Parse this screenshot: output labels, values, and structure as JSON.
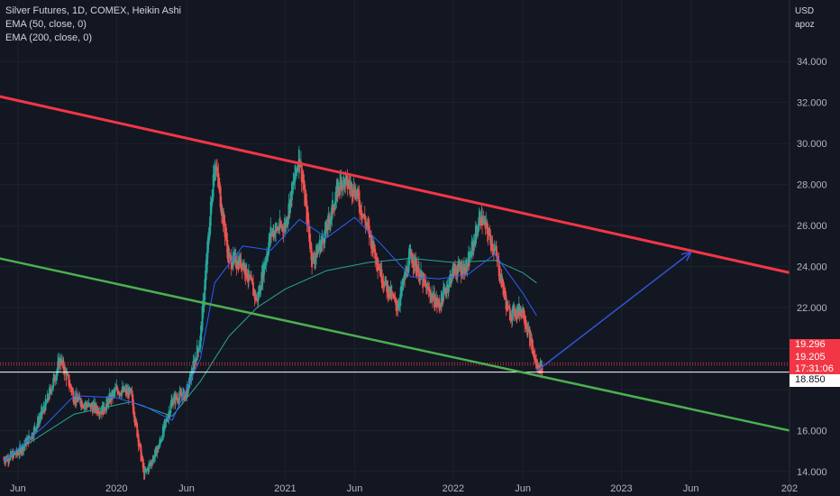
{
  "legend": {
    "title": "Silver Futures, 1D, COMEX, Heikin Ashi",
    "ema50": "EMA (50, close, 0)",
    "ema200": "EMA (200, close, 0)"
  },
  "axis": {
    "currency": "USD",
    "unit": "apoz"
  },
  "price_tags": {
    "last_price": "19.296",
    "close_price": "19.205",
    "countdown": "17:31:06",
    "line_price": "18.850"
  },
  "colors": {
    "background": "#131722",
    "resistance_line": "#f23645",
    "support_line": "#4caf50",
    "ema50": "#2962ff",
    "ema200": "#26a69a",
    "projection_arrow": "#2f56d6",
    "up_candle": "#26a69a",
    "down_candle": "#ef5350",
    "horizontal_line": "#ffffff"
  },
  "chart_data": {
    "type": "candlestick",
    "ylim": [
      13.6,
      37.0
    ],
    "y_ticks": [
      {
        "value": 14,
        "label": "14.000"
      },
      {
        "value": 16,
        "label": "16.000"
      },
      {
        "value": 18,
        "label": ""
      },
      {
        "value": 20,
        "label": "20.000"
      },
      {
        "value": 22,
        "label": "22.000"
      },
      {
        "value": 24,
        "label": "24.000"
      },
      {
        "value": 26,
        "label": "26.000"
      },
      {
        "value": 28,
        "label": "28.000"
      },
      {
        "value": 30,
        "label": "30.000"
      },
      {
        "value": 32,
        "label": "32.000"
      },
      {
        "value": 34,
        "label": "34.000"
      }
    ],
    "x_ticks": [
      {
        "date": "2019-06",
        "label": "Jun"
      },
      {
        "date": "2020-01",
        "label": "2020"
      },
      {
        "date": "2020-06",
        "label": "Jun"
      },
      {
        "date": "2021-01",
        "label": "2021"
      },
      {
        "date": "2021-06",
        "label": "Jun"
      },
      {
        "date": "2022-01",
        "label": "2022"
      },
      {
        "date": "2022-06",
        "label": "Jun"
      },
      {
        "date": "2023-01",
        "label": "2023"
      },
      {
        "date": "2023-06",
        "label": "Jun"
      },
      {
        "date": "2024-01",
        "label": "202"
      }
    ],
    "price_path": [
      {
        "date": "2019-05",
        "price": 14.6
      },
      {
        "date": "2019-06",
        "price": 14.9
      },
      {
        "date": "2019-07",
        "price": 15.8
      },
      {
        "date": "2019-08",
        "price": 17.3
      },
      {
        "date": "2019-09",
        "price": 19.5
      },
      {
        "date": "2019-10",
        "price": 17.6
      },
      {
        "date": "2019-11",
        "price": 17.2
      },
      {
        "date": "2019-12",
        "price": 17.0
      },
      {
        "date": "2020-01",
        "price": 18.0
      },
      {
        "date": "2020-02",
        "price": 17.8
      },
      {
        "date": "2020-03",
        "price": 13.8
      },
      {
        "date": "2020-04",
        "price": 15.2
      },
      {
        "date": "2020-05",
        "price": 17.5
      },
      {
        "date": "2020-06",
        "price": 17.8
      },
      {
        "date": "2020-07",
        "price": 20.5
      },
      {
        "date": "2020-08",
        "price": 29.3
      },
      {
        "date": "2020-09",
        "price": 24.3
      },
      {
        "date": "2020-10",
        "price": 24.2
      },
      {
        "date": "2020-11",
        "price": 22.3
      },
      {
        "date": "2020-12",
        "price": 25.7
      },
      {
        "date": "2021-01",
        "price": 26.0
      },
      {
        "date": "2021-02",
        "price": 29.5
      },
      {
        "date": "2021-03",
        "price": 24.2
      },
      {
        "date": "2021-04",
        "price": 25.8
      },
      {
        "date": "2021-05",
        "price": 28.2
      },
      {
        "date": "2021-06",
        "price": 27.8
      },
      {
        "date": "2021-07",
        "price": 25.7
      },
      {
        "date": "2021-08",
        "price": 23.4
      },
      {
        "date": "2021-09",
        "price": 22.0
      },
      {
        "date": "2021-10",
        "price": 24.6
      },
      {
        "date": "2021-11",
        "price": 23.0
      },
      {
        "date": "2021-12",
        "price": 22.1
      },
      {
        "date": "2022-01",
        "price": 23.8
      },
      {
        "date": "2022-02",
        "price": 24.0
      },
      {
        "date": "2022-03",
        "price": 26.5
      },
      {
        "date": "2022-04",
        "price": 24.8
      },
      {
        "date": "2022-05",
        "price": 21.7
      },
      {
        "date": "2022-06",
        "price": 21.9
      },
      {
        "date": "2022-07",
        "price": 19.1
      }
    ],
    "ema50_path": [
      {
        "date": "2019-05",
        "price": 14.5
      },
      {
        "date": "2019-08",
        "price": 16.3
      },
      {
        "date": "2019-10",
        "price": 17.7
      },
      {
        "date": "2020-01",
        "price": 17.6
      },
      {
        "date": "2020-03",
        "price": 17.2
      },
      {
        "date": "2020-05",
        "price": 16.5
      },
      {
        "date": "2020-07",
        "price": 19.5
      },
      {
        "date": "2020-08",
        "price": 23.2
      },
      {
        "date": "2020-10",
        "price": 25.0
      },
      {
        "date": "2020-12",
        "price": 24.8
      },
      {
        "date": "2021-02",
        "price": 26.3
      },
      {
        "date": "2021-04",
        "price": 25.4
      },
      {
        "date": "2021-06",
        "price": 26.4
      },
      {
        "date": "2021-08",
        "price": 25.0
      },
      {
        "date": "2021-10",
        "price": 23.5
      },
      {
        "date": "2021-12",
        "price": 23.4
      },
      {
        "date": "2022-02",
        "price": 23.6
      },
      {
        "date": "2022-04",
        "price": 24.6
      },
      {
        "date": "2022-06",
        "price": 22.7
      },
      {
        "date": "2022-07",
        "price": 21.6
      }
    ],
    "ema200_path": [
      {
        "date": "2019-05",
        "price": 14.6
      },
      {
        "date": "2019-10",
        "price": 16.8
      },
      {
        "date": "2020-02",
        "price": 17.4
      },
      {
        "date": "2020-05",
        "price": 16.7
      },
      {
        "date": "2020-07",
        "price": 18.4
      },
      {
        "date": "2020-09",
        "price": 20.6
      },
      {
        "date": "2020-11",
        "price": 22.0
      },
      {
        "date": "2021-01",
        "price": 22.9
      },
      {
        "date": "2021-04",
        "price": 23.8
      },
      {
        "date": "2021-07",
        "price": 24.2
      },
      {
        "date": "2021-10",
        "price": 24.4
      },
      {
        "date": "2022-01",
        "price": 24.2
      },
      {
        "date": "2022-04",
        "price": 24.3
      },
      {
        "date": "2022-06",
        "price": 23.7
      },
      {
        "date": "2022-07",
        "price": 23.2
      }
    ],
    "trendlines": [
      {
        "role": "resistance",
        "from": {
          "date": "2019-04",
          "price": 32.4
        },
        "to": {
          "date": "2024-01",
          "price": 23.7
        }
      },
      {
        "role": "support",
        "from": {
          "date": "2019-04",
          "price": 24.5
        },
        "to": {
          "date": "2024-01",
          "price": 16.0
        }
      }
    ],
    "horizontal_line": {
      "price": 18.85
    },
    "projection_arrow": {
      "from": {
        "date": "2022-07",
        "price": 18.9
      },
      "to": {
        "date": "2023-06",
        "price": 24.7
      }
    },
    "last_price": 19.296,
    "close_price": 19.205
  }
}
